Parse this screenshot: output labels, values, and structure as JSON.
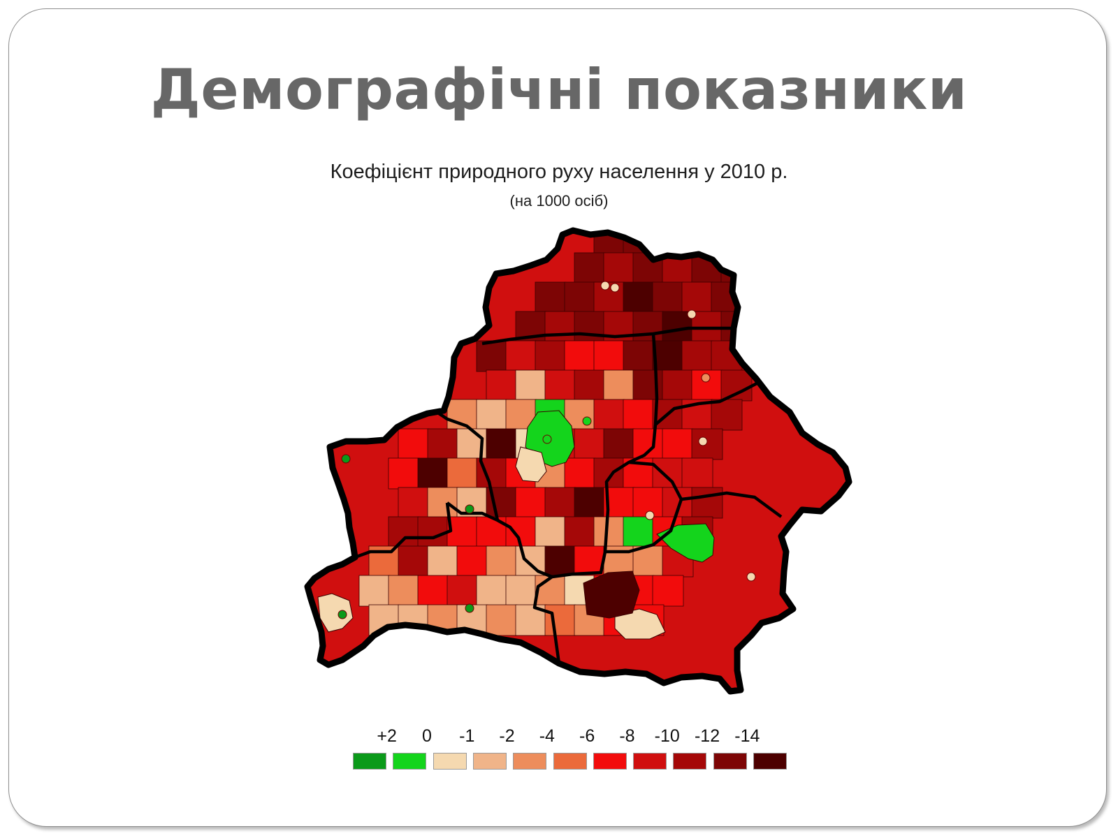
{
  "slide": {
    "title": "Демографічні показники"
  },
  "map": {
    "title": "Коефіцієнт природного руху населення у 2010 р.",
    "subtitle": "(на 1000 осіб)",
    "colors": {
      "border": "#000000",
      "region_line": "#3a0000"
    }
  },
  "legend": {
    "labels": [
      "+2",
      "0",
      "-1",
      "-2",
      "-4",
      "-6",
      "-8",
      "-10",
      "-12",
      "-14"
    ],
    "colors": [
      "#0b9a1a",
      "#14d41c",
      "#f5d9b0",
      "#f0b489",
      "#ed8d5c",
      "#eb6a3b",
      "#f20c0c",
      "#d00f0f",
      "#a50808",
      "#7d0505",
      "#4d0000"
    ]
  }
}
